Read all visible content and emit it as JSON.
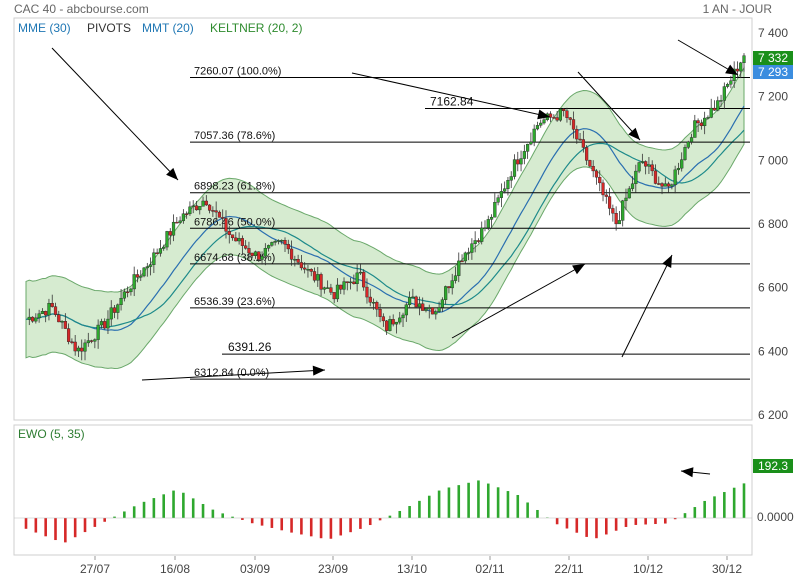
{
  "header": {
    "title": "CAC 40 - abcbourse.com",
    "period": "1 AN - JOUR"
  },
  "legend": [
    {
      "label": "MME (30)",
      "color": "#1f77b4"
    },
    {
      "label": "PIVOTS",
      "color": "#333333"
    },
    {
      "label": "MMT (20)",
      "color": "#1f77b4"
    },
    {
      "label": "KELTNER (20, 2)",
      "color": "#2e8b2e"
    }
  ],
  "price_badges": [
    {
      "label": "7 332",
      "color": "#1a8f1a"
    },
    {
      "label": "7 293",
      "color": "#3b8ddf"
    }
  ],
  "fib_levels": [
    {
      "label": "7260.07  (100.0%)",
      "value": 7260.07
    },
    {
      "label": "7057.36  (78.6%)",
      "value": 7057.36
    },
    {
      "label": "6898.23  (61.8%)",
      "value": 6898.23
    },
    {
      "label": "6786.46  (50.0%)",
      "value": 6786.46
    },
    {
      "label": "6674.68  (38.2%)",
      "value": 6674.68
    },
    {
      "label": "6536.39  (23.6%)",
      "value": 6536.39
    },
    {
      "label": "6312.84  (0.0%)",
      "value": 6312.84
    }
  ],
  "extra_levels": [
    {
      "label": "7162.84",
      "value": 7162.84
    },
    {
      "label": "6391.26",
      "value": 6391.26
    }
  ],
  "ewo": {
    "title": "EWO (5, 35)",
    "value_label": "192.3",
    "zero_label": "0.0000",
    "color_up": "#2ea82e",
    "color_down": "#d62828"
  },
  "chart_data": {
    "type": "candlestick",
    "title": "CAC 40 - abcbourse.com",
    "ylim": [
      6200,
      7400
    ],
    "y_ticks": [
      "7 400",
      "7 200",
      "7 000",
      "6 800",
      "6 600",
      "6 400",
      "6 200"
    ],
    "x_ticks": [
      "27/07",
      "16/08",
      "03/09",
      "23/09",
      "13/10",
      "02/11",
      "22/11",
      "10/12",
      "30/12"
    ],
    "close_points": [
      6500,
      6540,
      6400,
      6480,
      6600,
      6700,
      6820,
      6880,
      6760,
      6700,
      6740,
      6650,
      6580,
      6640,
      6470,
      6560,
      6530,
      6700,
      6800,
      6980,
      7120,
      7150,
      6980,
      6800,
      7000,
      6900,
      7100,
      7180,
      7332
    ],
    "ewo_points": [
      -60,
      -140,
      -30,
      80,
      160,
      40,
      -30,
      -80,
      -120,
      -50,
      50,
      160,
      210,
      130,
      -30,
      -120,
      -40,
      -30,
      100,
      192.3
    ]
  }
}
